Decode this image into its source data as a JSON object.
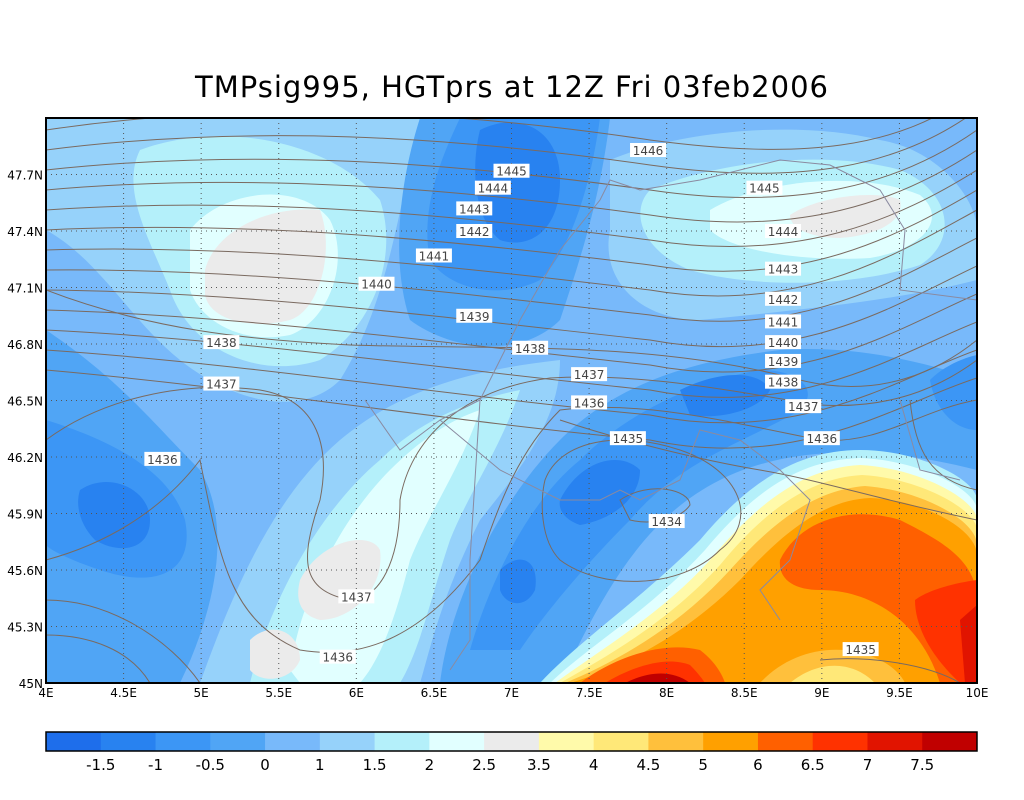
{
  "title": "TMPsig995, HGTprs at 12Z Fri 03feb2006",
  "map": {
    "lon_range": [
      4,
      10
    ],
    "lat_range": [
      45,
      48
    ],
    "x_ticks": [
      "4E",
      "4.5E",
      "5E",
      "5.5E",
      "6E",
      "6.5E",
      "7E",
      "7.5E",
      "8E",
      "8.5E",
      "9E",
      "9.5E",
      "10E"
    ],
    "y_ticks": [
      "45N",
      "45.3N",
      "45.6N",
      "45.9N",
      "46.2N",
      "46.5N",
      "46.8N",
      "47.1N",
      "47.4N",
      "47.7N"
    ],
    "contour_labels": [
      {
        "text": "1446",
        "lon": 7.88,
        "lat": 47.83
      },
      {
        "text": "1445",
        "lon": 7.0,
        "lat": 47.72
      },
      {
        "text": "1445",
        "lon": 8.63,
        "lat": 47.63
      },
      {
        "text": "1444",
        "lon": 6.88,
        "lat": 47.63
      },
      {
        "text": "1444",
        "lon": 8.75,
        "lat": 47.4
      },
      {
        "text": "1443",
        "lon": 6.76,
        "lat": 47.52
      },
      {
        "text": "1443",
        "lon": 8.75,
        "lat": 47.2
      },
      {
        "text": "1442",
        "lon": 6.76,
        "lat": 47.4
      },
      {
        "text": "1442",
        "lon": 8.75,
        "lat": 47.04
      },
      {
        "text": "1441",
        "lon": 6.5,
        "lat": 47.27
      },
      {
        "text": "1441",
        "lon": 8.75,
        "lat": 46.92
      },
      {
        "text": "1440",
        "lon": 6.13,
        "lat": 47.12
      },
      {
        "text": "1440",
        "lon": 8.75,
        "lat": 46.81
      },
      {
        "text": "1439",
        "lon": 6.76,
        "lat": 46.95
      },
      {
        "text": "1439",
        "lon": 8.75,
        "lat": 46.71
      },
      {
        "text": "1438",
        "lon": 5.13,
        "lat": 46.81
      },
      {
        "text": "1438",
        "lon": 7.12,
        "lat": 46.78
      },
      {
        "text": "1438",
        "lon": 8.75,
        "lat": 46.6
      },
      {
        "text": "1437",
        "lon": 5.13,
        "lat": 46.59
      },
      {
        "text": "1437",
        "lon": 7.5,
        "lat": 46.64
      },
      {
        "text": "1437",
        "lon": 8.88,
        "lat": 46.47
      },
      {
        "text": "1437",
        "lon": 6.0,
        "lat": 45.46
      },
      {
        "text": "1436",
        "lon": 4.75,
        "lat": 46.19
      },
      {
        "text": "1436",
        "lon": 7.5,
        "lat": 46.49
      },
      {
        "text": "1436",
        "lon": 9.0,
        "lat": 46.3
      },
      {
        "text": "1436",
        "lon": 5.88,
        "lat": 45.14
      },
      {
        "text": "1435",
        "lon": 7.75,
        "lat": 46.3
      },
      {
        "text": "1435",
        "lon": 9.25,
        "lat": 45.18
      },
      {
        "text": "1434",
        "lon": 8.0,
        "lat": 45.86
      }
    ]
  },
  "colorbar": {
    "labels": [
      "-1.5",
      "-1",
      "-0.5",
      "0",
      "1",
      "1.5",
      "2",
      "2.5",
      "3.5",
      "4",
      "4.5",
      "5",
      "6",
      "6.5",
      "7",
      "7.5"
    ],
    "colors": [
      "#1e6eeb",
      "#2882f0",
      "#3c96f5",
      "#50a5f5",
      "#78b9fa",
      "#96d2fa",
      "#b4f0fa",
      "#e1ffff",
      "#ebebeb",
      "#fffaaa",
      "#ffe878",
      "#ffc03c",
      "#ffa000",
      "#ff6000",
      "#ff3200",
      "#e11400",
      "#c00000"
    ]
  }
}
